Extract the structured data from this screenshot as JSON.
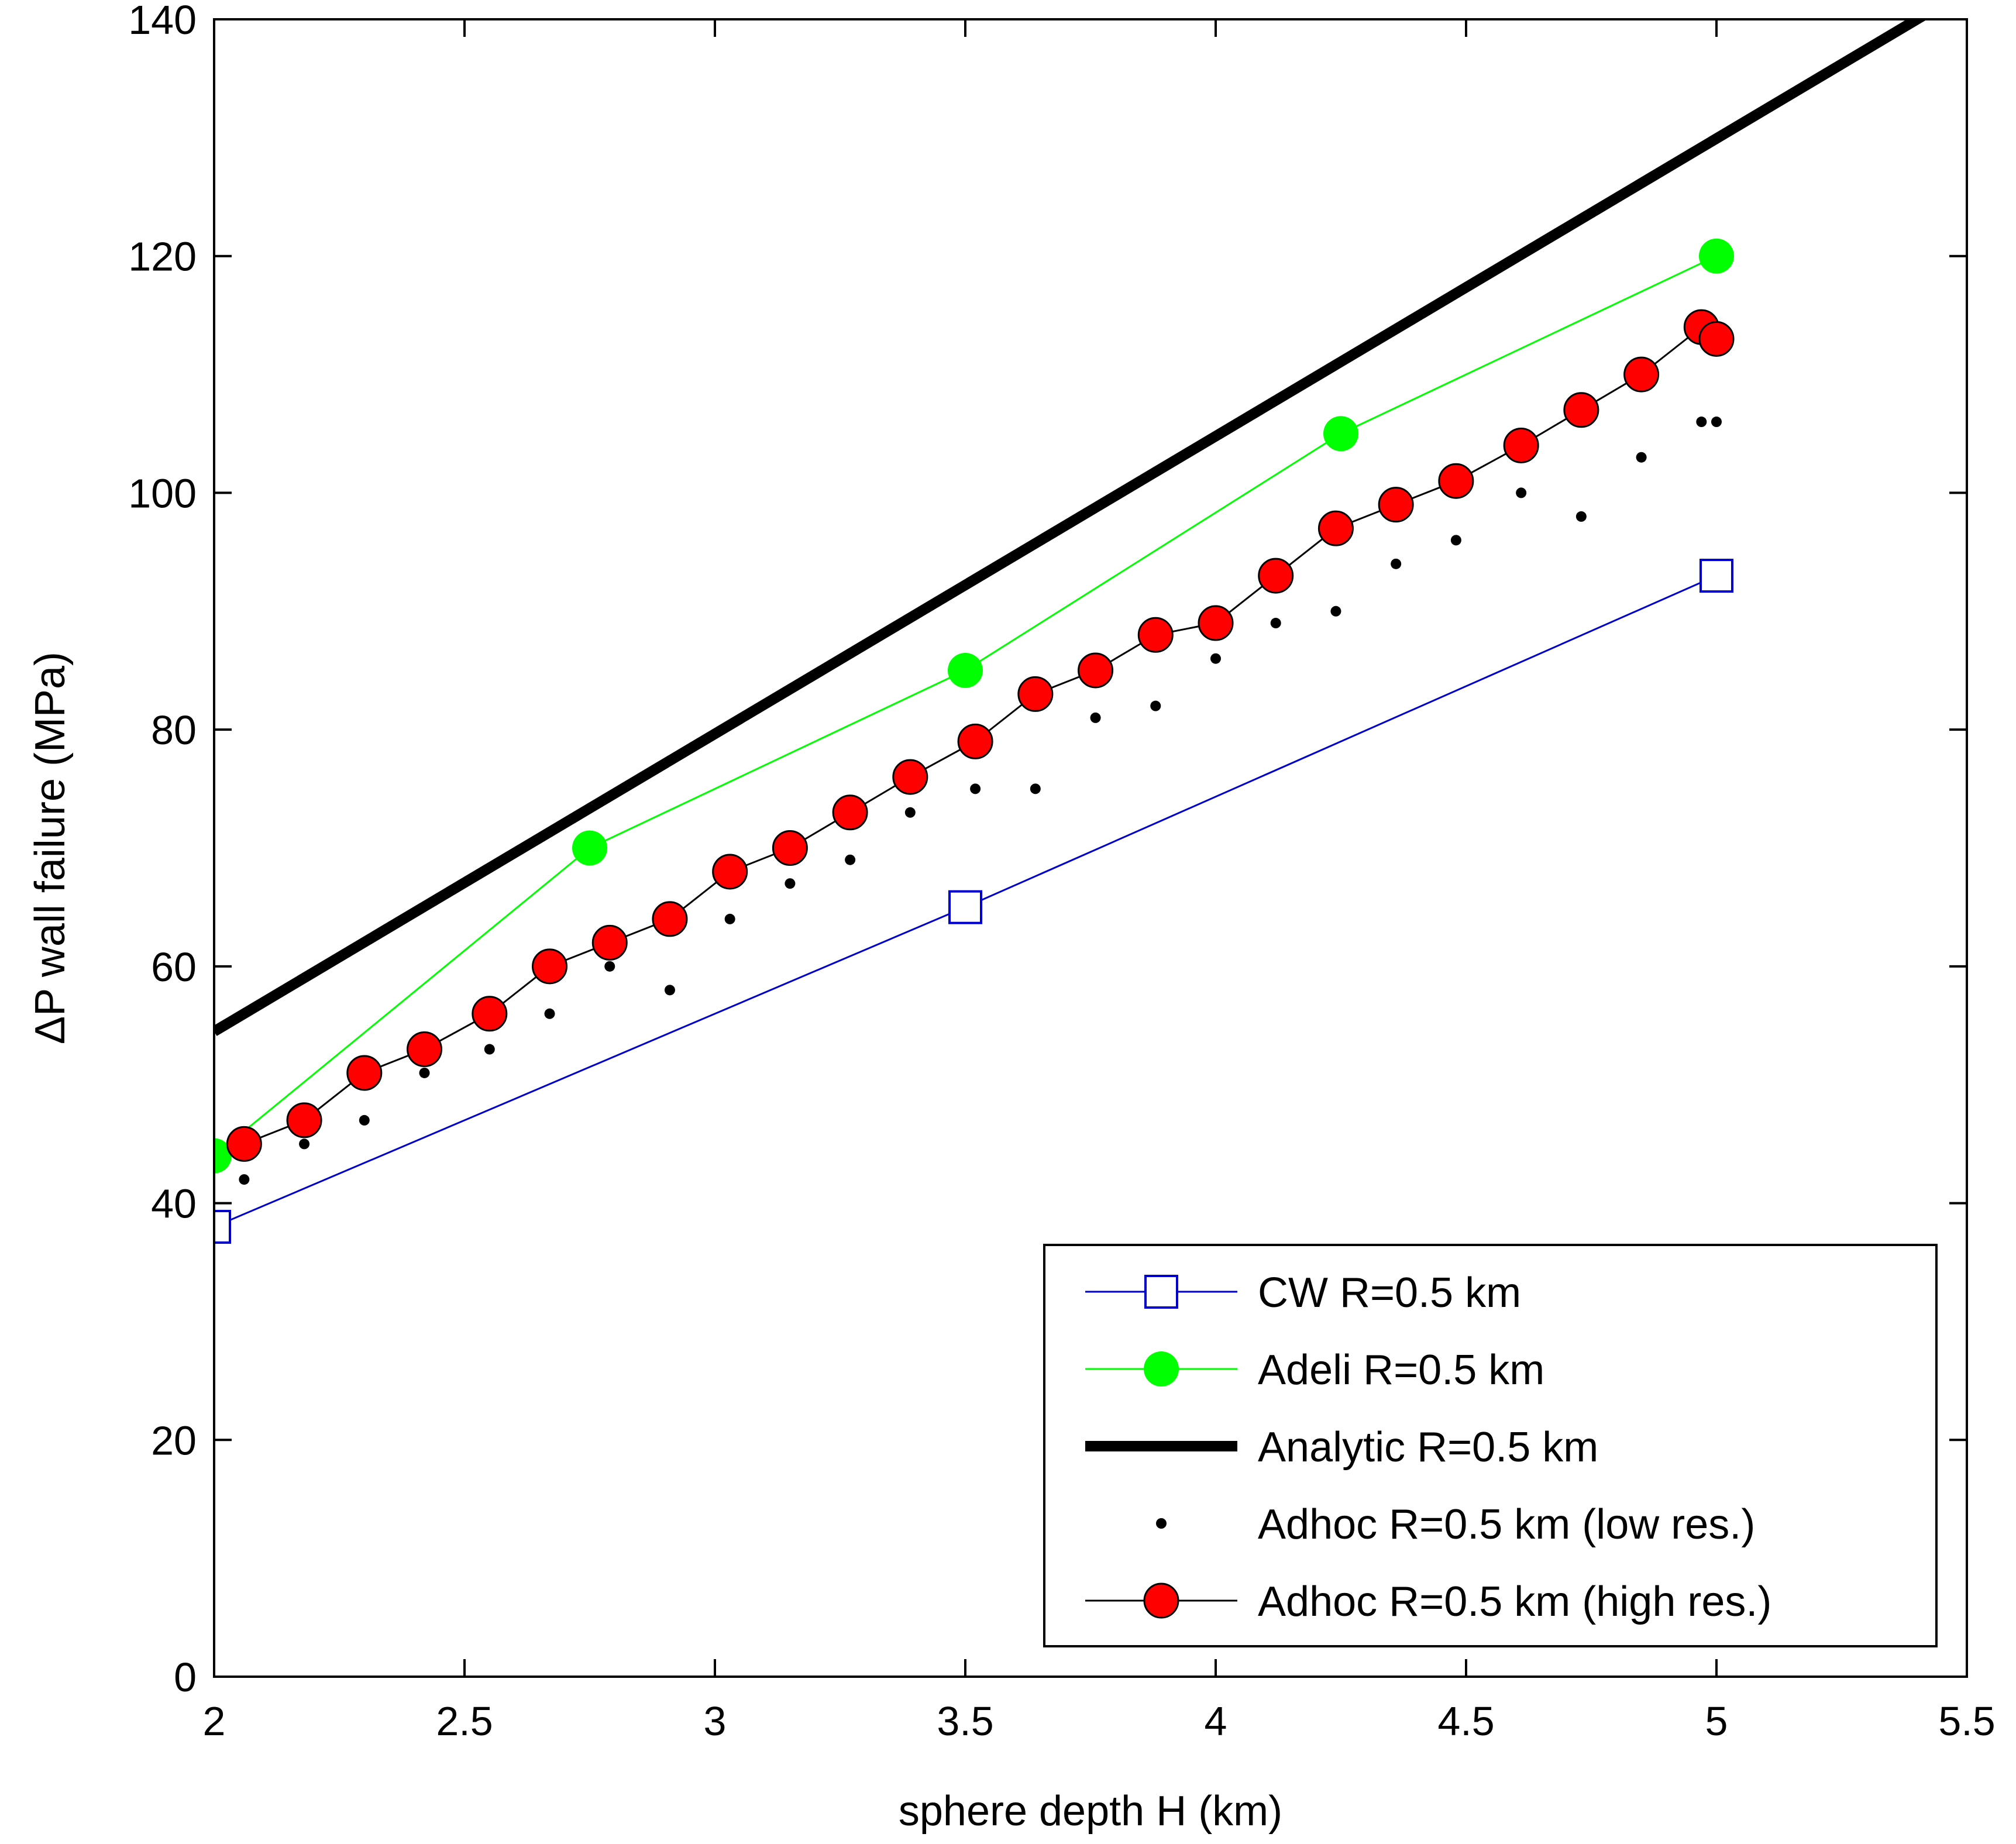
{
  "chart_data": {
    "type": "line",
    "xlabel": "sphere depth H (km)",
    "ylabel": "ΔP wall failure (MPa)",
    "xlim": [
      2,
      5.5
    ],
    "ylim": [
      0,
      140
    ],
    "xticks": [
      2,
      2.5,
      3,
      3.5,
      4,
      4.5,
      5,
      5.5
    ],
    "xtick_labels": [
      "2",
      "2.5",
      "3",
      "3.5",
      "4",
      "4.5",
      "5",
      "5.5"
    ],
    "yticks": [
      0,
      20,
      40,
      60,
      80,
      100,
      120,
      140
    ],
    "ytick_labels": [
      "0",
      "20",
      "40",
      "60",
      "80",
      "100",
      "120",
      "140"
    ],
    "grid": false,
    "legend_position": "bottom-right",
    "series": [
      {
        "name": "CW R=0.5 km",
        "color": "#0000cc",
        "style": "line-open-square",
        "x": [
          2.0,
          3.5,
          5.0
        ],
        "y": [
          38,
          65,
          93
        ]
      },
      {
        "name": "Adeli R=0.5 km",
        "color": "#00ff00",
        "style": "line-filled-circle",
        "x": [
          2.0,
          2.75,
          3.5,
          4.25,
          5.0
        ],
        "y": [
          44,
          70,
          85,
          105,
          120
        ]
      },
      {
        "name": "Analytic R=0.5 km",
        "color": "#000000",
        "style": "thick-line",
        "x": [
          2.0,
          5.5
        ],
        "y": [
          54.5,
          142.5
        ]
      },
      {
        "name": "Adhoc R=0.5 km (low res.)",
        "color": "#000000",
        "style": "dots",
        "x": [
          2.06,
          2.18,
          2.3,
          2.42,
          2.55,
          2.67,
          2.79,
          2.91,
          3.03,
          3.15,
          3.27,
          3.39,
          3.52,
          3.64,
          3.76,
          3.88,
          4.0,
          4.12,
          4.24,
          4.36,
          4.48,
          4.61,
          4.73,
          4.85,
          4.97,
          5.0
        ],
        "y": [
          42,
          45,
          47,
          51,
          53,
          56,
          60,
          58,
          64,
          67,
          69,
          73,
          75,
          75,
          81,
          82,
          86,
          89,
          90,
          94,
          96,
          100,
          98,
          103,
          106,
          106
        ]
      },
      {
        "name": "Adhoc R=0.5 km (high res.)",
        "color": "#ff0000",
        "style": "line-filled-circle-outlined",
        "x": [
          2.06,
          2.18,
          2.3,
          2.42,
          2.55,
          2.67,
          2.79,
          2.91,
          3.03,
          3.15,
          3.27,
          3.39,
          3.52,
          3.64,
          3.76,
          3.88,
          4.0,
          4.12,
          4.24,
          4.36,
          4.48,
          4.61,
          4.73,
          4.85,
          4.97,
          5.0
        ],
        "y": [
          45,
          47,
          51,
          53,
          56,
          60,
          62,
          64,
          68,
          70,
          73,
          76,
          79,
          83,
          85,
          88,
          89,
          93,
          97,
          99,
          101,
          104,
          107,
          110,
          114,
          113
        ]
      }
    ]
  }
}
